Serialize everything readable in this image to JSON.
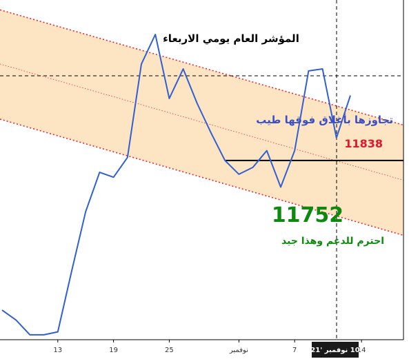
{
  "chart_data": {
    "type": "line",
    "title": "المؤشر العام يومي الاربعاء",
    "x": [
      1,
      2,
      3,
      4,
      5,
      6,
      7,
      8,
      9,
      10,
      11,
      12,
      13,
      14,
      15,
      16,
      17,
      18,
      19,
      20,
      21,
      22,
      23,
      24,
      25,
      26
    ],
    "values": [
      11600,
      11590,
      11575,
      11575,
      11578,
      11640,
      11700,
      11740,
      11735,
      11755,
      11850,
      11880,
      11815,
      11845,
      11810,
      11780,
      11752,
      11738,
      11745,
      11762,
      11725,
      11762,
      11843,
      11845,
      11775,
      11818
    ],
    "x_ticks": [
      "13",
      "19",
      "25",
      "نوفمبر",
      "7",
      "14"
    ],
    "current_date_label": "10 نوفمبر '21",
    "ylim": [
      11570,
      11915
    ],
    "channel": {
      "upper": [
        11905,
        11788
      ],
      "middle": [
        11850,
        11732
      ],
      "lower": [
        11794,
        11676
      ],
      "fill_color": "#fde1bd",
      "line_color": "#e8262e"
    },
    "annotations": {
      "resistance_text": "تجاوزها بأغلاق فوقها طيب",
      "resistance_level": "11838",
      "support_level": "11752",
      "support_text": "احترم للدعم وهذا جيد"
    },
    "series_color": "#2f5fd0",
    "grid": false
  }
}
